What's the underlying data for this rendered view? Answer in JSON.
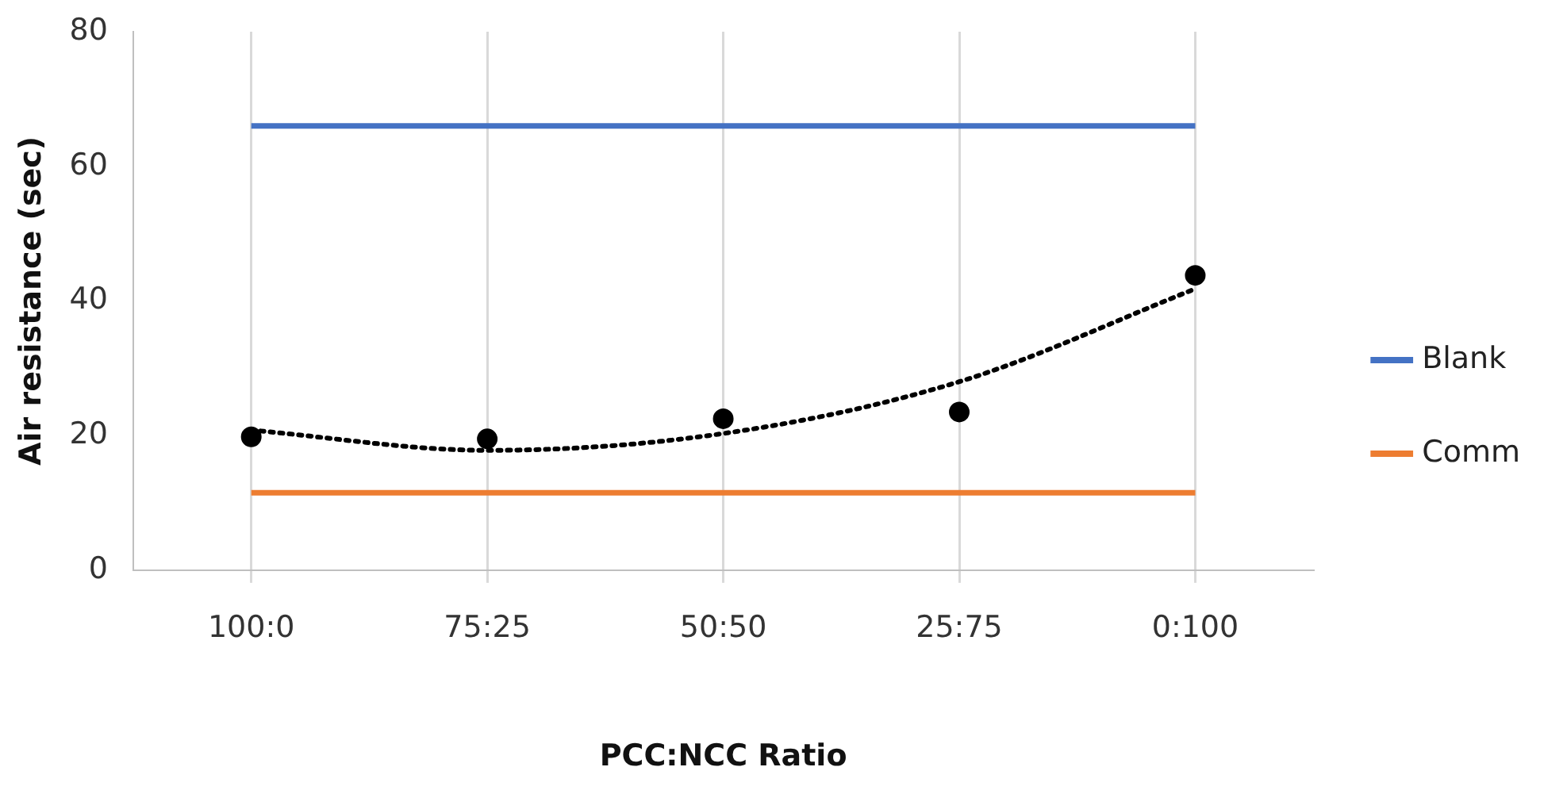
{
  "chart_data": {
    "type": "scatter",
    "xlabel": "PCC:NCC Ratio",
    "ylabel": "Air resistance (sec)",
    "categories": [
      "100:0",
      "75:25",
      "50:50",
      "25:75",
      "0:100"
    ],
    "ylim": [
      0,
      80
    ],
    "yticks": [
      0,
      20,
      40,
      60,
      80
    ],
    "grid": "x",
    "legend": "right",
    "series": [
      {
        "name": "Blank",
        "type": "line",
        "color": "#4472c4",
        "values": [
          66,
          66,
          66,
          66,
          66
        ],
        "marker": "none",
        "line_style": "solid"
      },
      {
        "name": "Comm",
        "type": "line",
        "color": "#ed7d31",
        "values": [
          11.5,
          11.5,
          11.5,
          11.5,
          11.5
        ],
        "marker": "none",
        "line_style": "solid"
      },
      {
        "type": "scatter",
        "color": "#000000",
        "values": [
          19.8,
          19.5,
          22.5,
          23.5,
          43.8
        ],
        "marker": "circle"
      },
      {
        "type": "line",
        "color": "#000000",
        "values": [
          20.8,
          17.8,
          20.3,
          28,
          41.8
        ],
        "marker": "none",
        "line_style": "dotted"
      }
    ]
  }
}
